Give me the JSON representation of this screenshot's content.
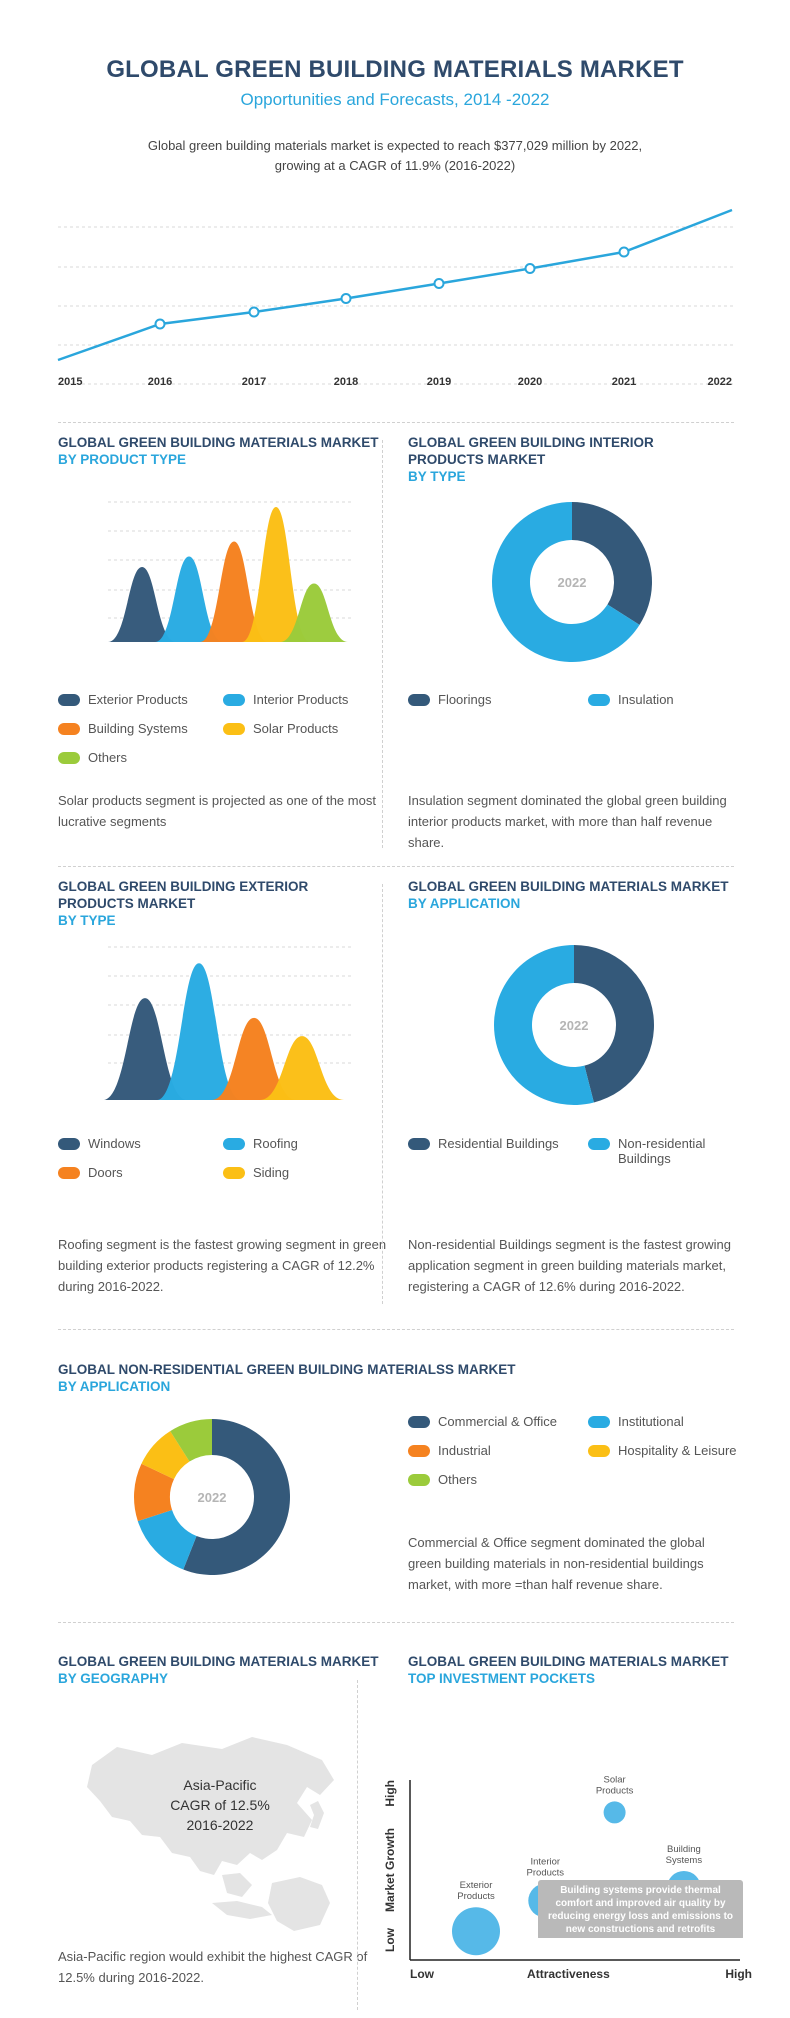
{
  "header": {
    "title": "GLOBAL GREEN BUILDING MATERIALS MARKET",
    "subtitle": "Opportunities and Forecasts, 2014 -2022",
    "intro_line1": "Global green building materials market is expected to reach $377,029 million by 2022,",
    "intro_line2": "growing at a CAGR of 11.9% (2016-2022)"
  },
  "colors": {
    "navy": "#34597a",
    "blue": "#29abe2",
    "orange": "#f58220",
    "yellow": "#fbbf15",
    "green": "#9bcb3b",
    "title": "#2f4a6b",
    "accent": "#2aa6dc",
    "line": "#2aa6dc"
  },
  "chart_data": [
    {
      "id": "trend",
      "type": "line",
      "x": [
        "2015",
        "2016",
        "2017",
        "2018",
        "2019",
        "2020",
        "2021",
        "2022"
      ],
      "values": [
        0.0,
        0.24,
        0.32,
        0.41,
        0.51,
        0.61,
        0.72,
        1.0
      ],
      "markers": [
        "2016",
        "2017",
        "2018",
        "2019",
        "2020",
        "2021"
      ],
      "grid": true
    },
    {
      "id": "product_type",
      "type": "area",
      "title": "GLOBAL GREEN BUILDING MATERIALS MARKET",
      "subtitle": "BY  PRODUCT TYPE",
      "categories": [
        "Exterior Products",
        "Interior Products",
        "Building Systems",
        "Solar Products",
        "Others"
      ],
      "values": [
        50,
        57,
        67,
        90,
        39
      ],
      "colors": [
        "#34597a",
        "#29abe2",
        "#f58220",
        "#fbbf15",
        "#9bcb3b"
      ],
      "grid": true,
      "description": "Solar products segment is projected as one of the most lucrative segments"
    },
    {
      "id": "interior",
      "type": "pie",
      "title": "GLOBAL GREEN BUILDING INTERIOR PRODUCTS MARKET",
      "subtitle": "BY TYPE",
      "center_label": "2022",
      "categories": [
        "Floorings",
        "Insulation"
      ],
      "values": [
        34,
        66
      ],
      "colors": [
        "#34597a",
        "#29abe2"
      ],
      "description": "Insulation segment dominated the global green building interior products market, with more than half revenue share."
    },
    {
      "id": "exterior",
      "type": "area",
      "title": "GLOBAL GREEN BUILDING EXTERIOR PRODUCTS MARKET",
      "subtitle": "BY  TYPE",
      "categories": [
        "Windows",
        "Roofing",
        "Doors",
        "Siding"
      ],
      "values": [
        67,
        90,
        54,
        42
      ],
      "colors": [
        "#34597a",
        "#29abe2",
        "#f58220",
        "#fbbf15"
      ],
      "grid": true,
      "description": "Roofing segment is the fastest growing segment in green building exterior products registering a CAGR of 12.2% during 2016-2022."
    },
    {
      "id": "application",
      "type": "pie",
      "title": "GLOBAL GREEN BUILDING MATERIALS MARKET",
      "subtitle": "BY APPLICATION",
      "center_label": "2022",
      "categories": [
        "Residential Buildings",
        "Non-residential Buildings"
      ],
      "values": [
        46,
        54
      ],
      "colors": [
        "#34597a",
        "#29abe2"
      ],
      "description": "Non-residential Buildings segment is the fastest growing application segment in green building materials market, registering a CAGR of 12.6% during 2016-2022."
    },
    {
      "id": "nonres",
      "type": "pie",
      "title": "GLOBAL NON-RESIDENTIAL GREEN BUILDING MATERIALSS MARKET",
      "subtitle": "BY APPLICATION",
      "center_label": "2022",
      "categories": [
        "Commercial & Office",
        "Institutional",
        "Industrial",
        "Hospitality & Leisure",
        "Others"
      ],
      "values": [
        56,
        14,
        12,
        9,
        9
      ],
      "colors": [
        "#34597a",
        "#29abe2",
        "#f58220",
        "#fbbf15",
        "#9bcb3b"
      ],
      "description": "Commercial & Office segment dominated the global green building materials in non-residential buildings market, with more =than half revenue share."
    },
    {
      "id": "investment",
      "type": "scatter",
      "title": "GLOBAL GREEN BUILDING MATERIALS MARKET",
      "subtitle": "TOP INVESTMENT POCKETS",
      "xlabel": "Attractiveness",
      "ylabel": "Market Growth",
      "x_ticks": [
        "Low",
        "High"
      ],
      "y_ticks": [
        "Low",
        "High"
      ],
      "points": [
        {
          "label": "Exterior Products",
          "x": 0.2,
          "y": 0.16,
          "size": 3
        },
        {
          "label": "Interior Products",
          "x": 0.41,
          "y": 0.33,
          "size": 2
        },
        {
          "label": "Solar Products",
          "x": 0.62,
          "y": 0.82,
          "size": 1
        },
        {
          "label": "Building Systems",
          "x": 0.83,
          "y": 0.4,
          "size": 2
        }
      ],
      "note": "Building systems provide thermal comfort and improved air quality by reducing energy loss and emissions to new constructions and retrofits"
    }
  ],
  "labels": {
    "product_type_title": "GLOBAL GREEN BUILDING MATERIALS MARKET",
    "product_type_sub": "BY  PRODUCT TYPE",
    "interior_title1": "GLOBAL GREEN BUILDING INTERIOR",
    "interior_title2": "PRODUCTS MARKET",
    "interior_sub": "BY TYPE",
    "exterior_title1": "GLOBAL GREEN BUILDING EXTERIOR",
    "exterior_title2": "PRODUCTS MARKET",
    "exterior_sub": "BY  TYPE",
    "application_title": "GLOBAL GREEN BUILDING MATERIALS MARKET",
    "application_sub": "BY APPLICATION",
    "nonres_title": "GLOBAL NON-RESIDENTIAL GREEN BUILDING MATERIALSS MARKET",
    "nonres_sub": "BY APPLICATION",
    "geo_title": "GLOBAL GREEN BUILDING MATERIALS MARKET",
    "geo_sub": "BY GEOGRAPHY",
    "invest_title": "GLOBAL GREEN BUILDING MATERIALS MARKET",
    "invest_sub": "TOP INVESTMENT POCKETS"
  },
  "legends": {
    "product_type": [
      "Exterior Products",
      "Interior Products",
      "Building Systems",
      "Solar Products",
      "Others"
    ],
    "interior": [
      "Floorings",
      "Insulation"
    ],
    "exterior": [
      "Windows",
      "Roofing",
      "Doors",
      "Siding"
    ],
    "application": [
      "Residential Buildings",
      "Non-residential Buildings"
    ],
    "nonres": [
      "Commercial & Office",
      "Institutional",
      "Industrial",
      "Hospitality & Leisure",
      "Others"
    ]
  },
  "descriptions": {
    "product_type": "Solar products segment is projected as one of the most lucrative segments",
    "interior": "Insulation segment dominated the global green building interior products market, with more than half revenue share.",
    "exterior": "Roofing segment is the fastest growing segment in green building exterior products registering a CAGR of 12.2% during 2016-2022.",
    "application": "Non-residential Buildings segment is the fastest growing application segment in green building materials market, registering a CAGR of 12.6% during 2016-2022.",
    "nonres": "Commercial & Office segment dominated the global green building materials in non-residential buildings market, with more =than half revenue share.",
    "geography": "Asia-Pacific region would exhibit the highest CAGR of 12.5% during 2016-2022."
  },
  "geography": {
    "region": "Asia-Pacific",
    "cagr": "CAGR of 12.5%",
    "period": "2016-2022"
  }
}
